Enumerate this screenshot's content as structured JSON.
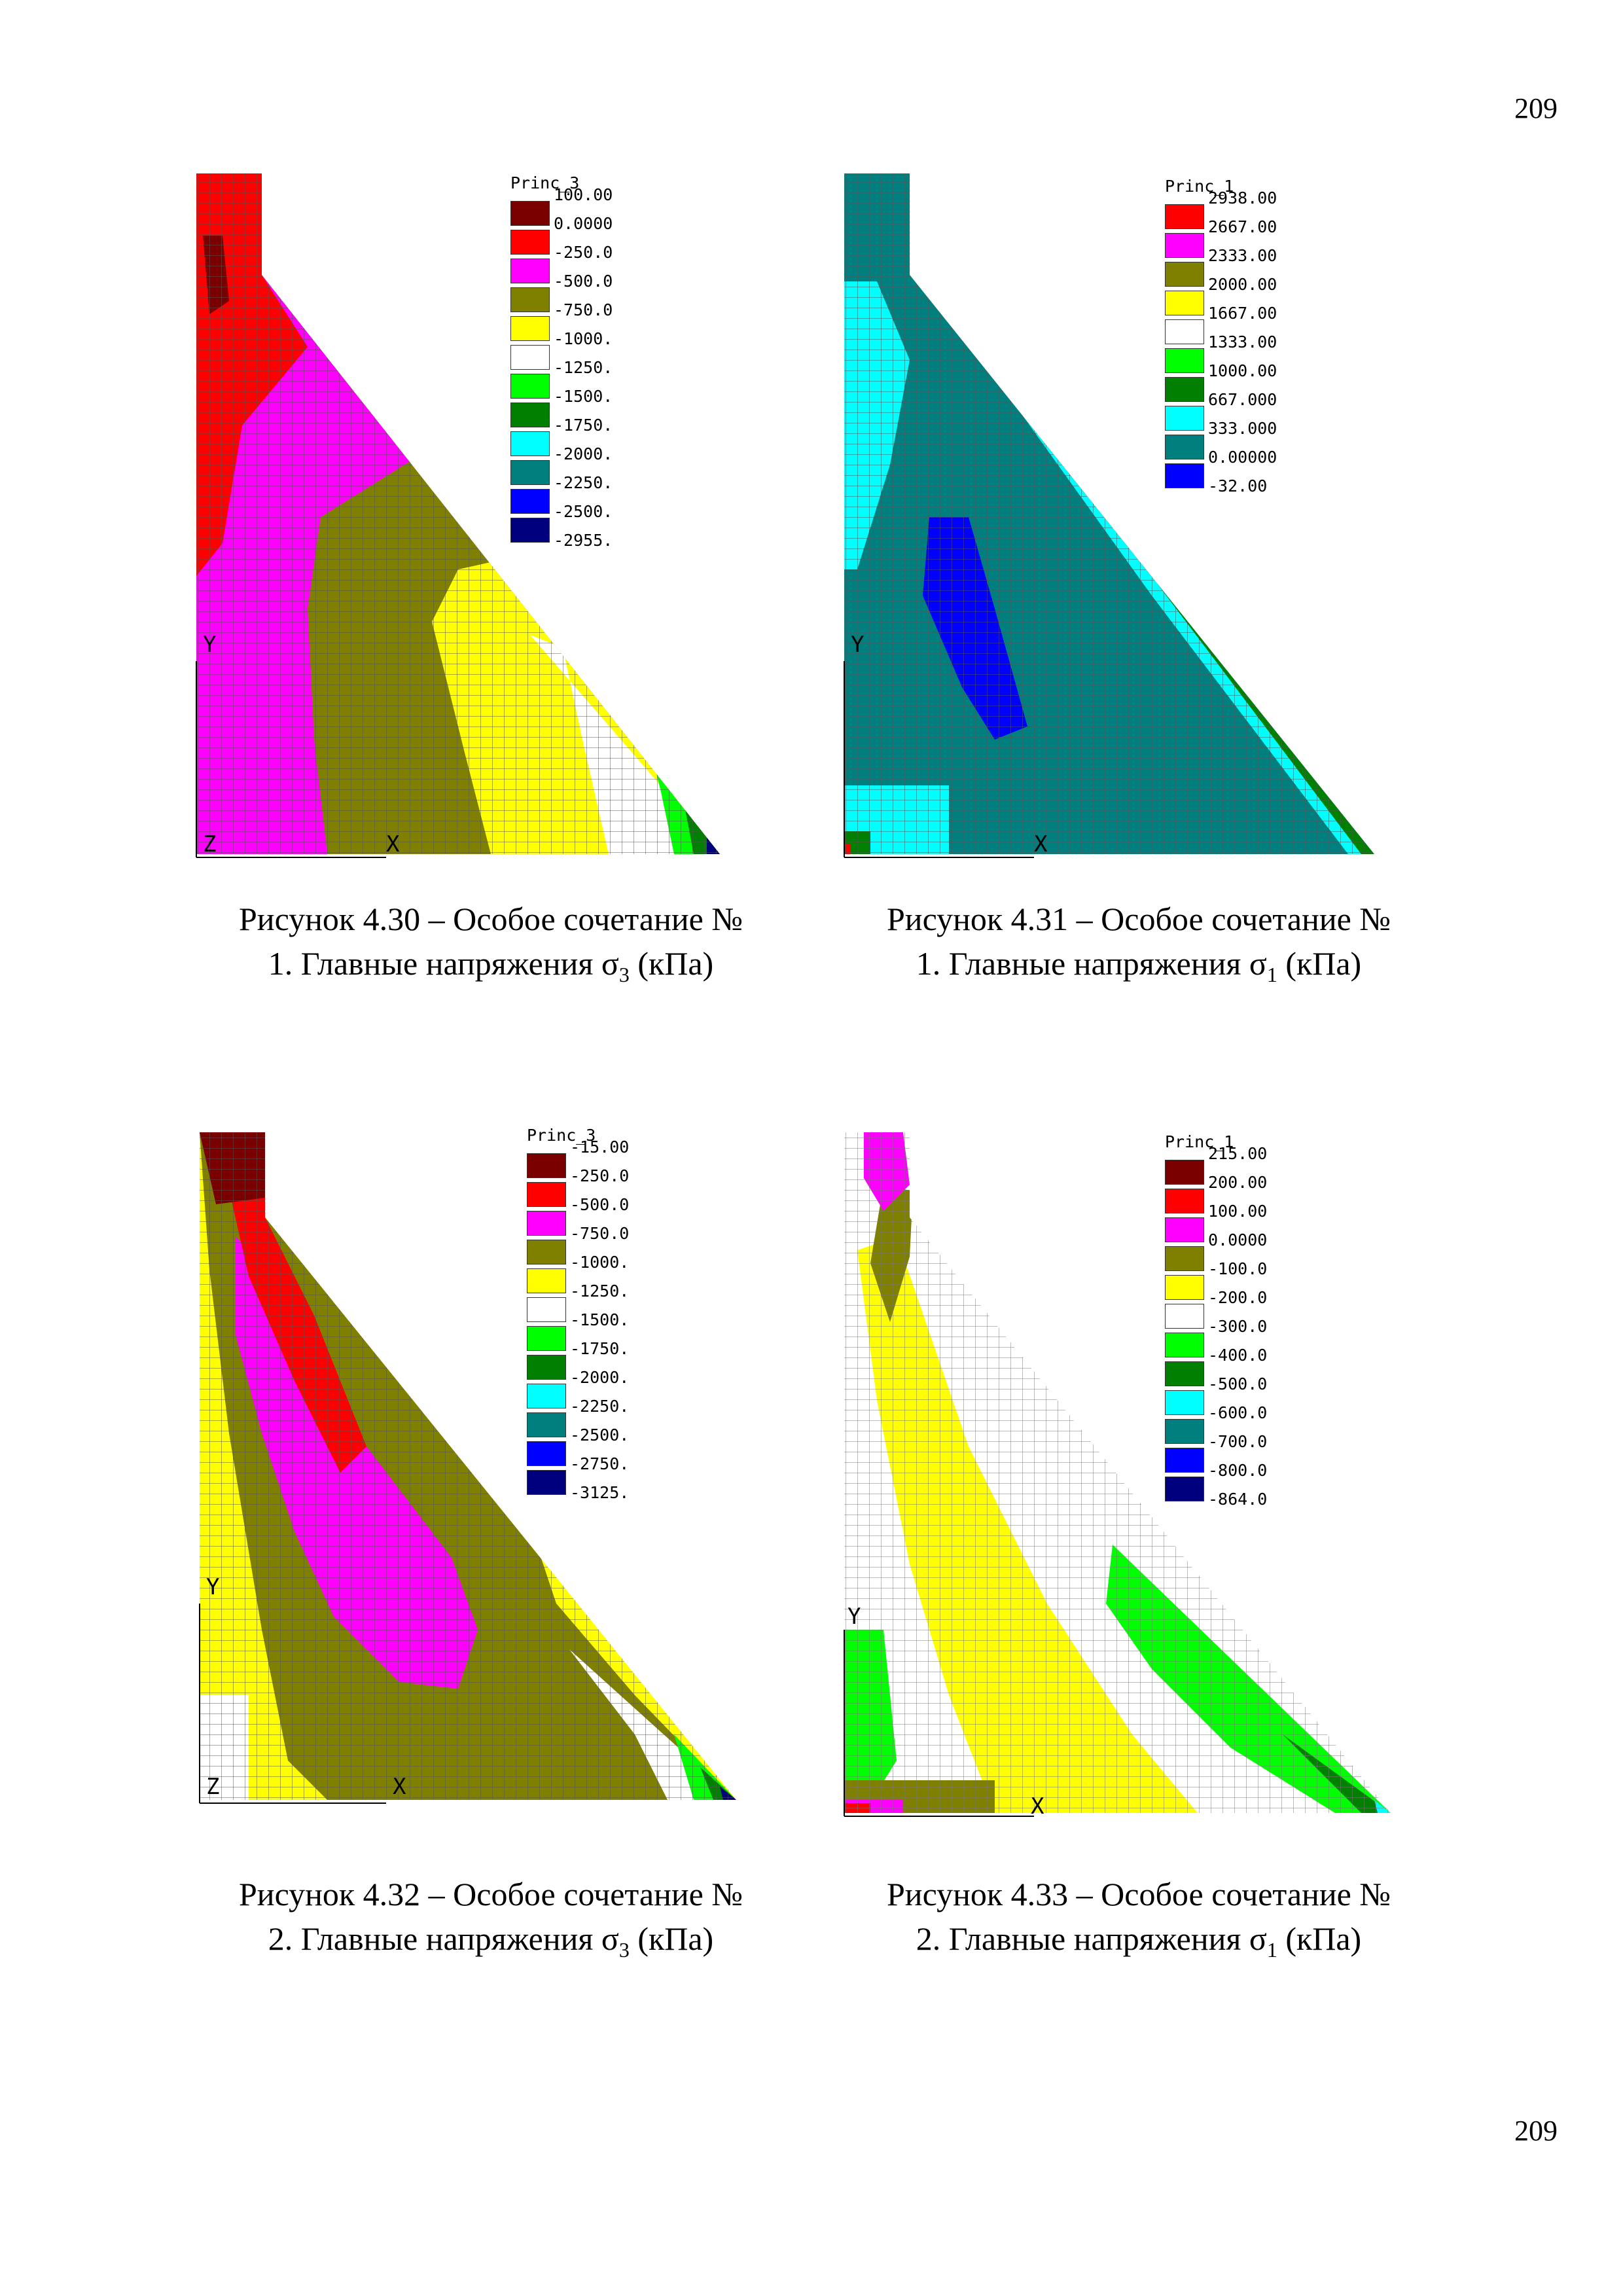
{
  "page_number_top": "209",
  "page_number_bottom": "209",
  "figures": [
    {
      "id": "fig430",
      "legend_title": "Princ_3",
      "caption_line1": "Рисунок 4.30 – Особое сочетание №",
      "caption_line2_pre": "1. Главные напряжения σ",
      "caption_sub": "3",
      "caption_line2_post": " (кПа)",
      "legend": [
        {
          "label": "100.00",
          "color": "#7a0000"
        },
        {
          "label": "0.0000",
          "color": "#ff0000"
        },
        {
          "label": "-250.0",
          "color": "#ff00ff"
        },
        {
          "label": "-500.0",
          "color": "#7f7f00"
        },
        {
          "label": "-750.0",
          "color": "#ffff00"
        },
        {
          "label": "-1000.",
          "color": "#ffffff"
        },
        {
          "label": "-1250.",
          "color": "#00ff00"
        },
        {
          "label": "-1500.",
          "color": "#007f00"
        },
        {
          "label": "-1750.",
          "color": "#00ffff"
        },
        {
          "label": "-2000.",
          "color": "#007f7f"
        },
        {
          "label": "-2250.",
          "color": "#0000ff"
        },
        {
          "label": "-2500.",
          "color": "#00007f"
        },
        {
          "label": "-2955.",
          "color": "#00007f"
        }
      ]
    },
    {
      "id": "fig431",
      "legend_title": "Princ_1",
      "caption_line1": "Рисунок 4.31 – Особое сочетание №",
      "caption_line2_pre": "1. Главные напряжения σ",
      "caption_sub": "1",
      "caption_line2_post": " (кПа)",
      "legend": [
        {
          "label": "2938.00",
          "color": "#ff0000"
        },
        {
          "label": "2667.00",
          "color": "#ff00ff"
        },
        {
          "label": "2333.00",
          "color": "#7f7f00"
        },
        {
          "label": "2000.00",
          "color": "#ffff00"
        },
        {
          "label": "1667.00",
          "color": "#ffffff"
        },
        {
          "label": "1333.00",
          "color": "#00ff00"
        },
        {
          "label": "1000.00",
          "color": "#007f00"
        },
        {
          "label": "667.000",
          "color": "#00ffff"
        },
        {
          "label": "333.000",
          "color": "#007f7f"
        },
        {
          "label": "0.00000",
          "color": "#0000ff"
        },
        {
          "label": "-32.00",
          "color": "#0000ff"
        }
      ]
    },
    {
      "id": "fig432",
      "legend_title": "Princ_3",
      "caption_line1": "Рисунок 4.32 – Особое сочетание №",
      "caption_line2_pre": "2. Главные напряжения σ",
      "caption_sub": "3",
      "caption_line2_post": " (кПа)",
      "legend": [
        {
          "label": "-15.00",
          "color": "#7a0000"
        },
        {
          "label": "-250.0",
          "color": "#ff0000"
        },
        {
          "label": "-500.0",
          "color": "#ff00ff"
        },
        {
          "label": "-750.0",
          "color": "#7f7f00"
        },
        {
          "label": "-1000.",
          "color": "#ffff00"
        },
        {
          "label": "-1250.",
          "color": "#ffffff"
        },
        {
          "label": "-1500.",
          "color": "#00ff00"
        },
        {
          "label": "-1750.",
          "color": "#007f00"
        },
        {
          "label": "-2000.",
          "color": "#00ffff"
        },
        {
          "label": "-2250.",
          "color": "#007f7f"
        },
        {
          "label": "-2500.",
          "color": "#0000ff"
        },
        {
          "label": "-2750.",
          "color": "#00007f"
        },
        {
          "label": "-3125.",
          "color": "#00007f"
        }
      ]
    },
    {
      "id": "fig433",
      "legend_title": "Princ_1",
      "caption_line1": "Рисунок 4.33 – Особое сочетание №",
      "caption_line2_pre": "2. Главные напряжения σ",
      "caption_sub": "1",
      "caption_line2_post": " (кПа)",
      "legend": [
        {
          "label": "215.00",
          "color": "#7a0000"
        },
        {
          "label": "200.00",
          "color": "#ff0000"
        },
        {
          "label": "100.00",
          "color": "#ff00ff"
        },
        {
          "label": "0.0000",
          "color": "#7f7f00"
        },
        {
          "label": "-100.0",
          "color": "#ffff00"
        },
        {
          "label": "-200.0",
          "color": "#ffffff"
        },
        {
          "label": "-300.0",
          "color": "#00ff00"
        },
        {
          "label": "-400.0",
          "color": "#007f00"
        },
        {
          "label": "-500.0",
          "color": "#00ffff"
        },
        {
          "label": "-600.0",
          "color": "#007f7f"
        },
        {
          "label": "-700.0",
          "color": "#0000ff"
        },
        {
          "label": "-800.0",
          "color": "#00007f"
        },
        {
          "label": "-864.0",
          "color": "#00007f"
        }
      ]
    }
  ],
  "axes": {
    "x": "X",
    "y": "Y",
    "z": "Z"
  }
}
